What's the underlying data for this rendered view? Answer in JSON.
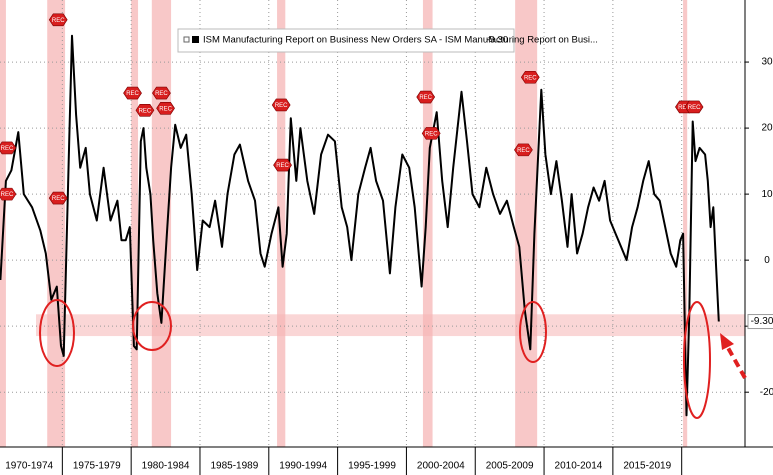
{
  "chart_data": {
    "type": "line",
    "series": [
      {
        "name": "ISM Manufacturing Report on Business New Orders SA - ISM Manufacturing Report on Busi...",
        "color": "#000000",
        "x": [
          1970.5,
          1970.9,
          1971.3,
          1971.8,
          1972.2,
          1972.8,
          1973.4,
          1973.8,
          1974.2,
          1974.6,
          1974.9,
          1975.1,
          1975.3,
          1975.5,
          1975.7,
          1976.0,
          1976.3,
          1976.7,
          1977.0,
          1977.5,
          1978.0,
          1978.5,
          1979.0,
          1979.3,
          1979.6,
          1979.9,
          1980.2,
          1980.4,
          1980.7,
          1980.9,
          1981.1,
          1981.4,
          1981.6,
          1981.9,
          1982.2,
          1982.6,
          1982.9,
          1983.2,
          1983.6,
          1984.0,
          1984.4,
          1984.8,
          1985.2,
          1985.7,
          1986.1,
          1986.6,
          1987.0,
          1987.5,
          1987.9,
          1988.5,
          1989.0,
          1989.4,
          1989.7,
          1990.2,
          1990.7,
          1991.0,
          1991.3,
          1991.6,
          1992.0,
          1992.3,
          1992.8,
          1993.3,
          1993.8,
          1994.3,
          1994.8,
          1995.3,
          1995.7,
          1996.0,
          1996.5,
          1997.0,
          1997.4,
          1997.8,
          1998.3,
          1998.8,
          1999.2,
          1999.7,
          2000.2,
          2000.6,
          2001.1,
          2001.4,
          2001.7,
          2002.2,
          2002.6,
          2003.0,
          2003.4,
          2004.0,
          2004.4,
          2004.8,
          2005.3,
          2005.8,
          2006.3,
          2006.8,
          2007.3,
          2007.8,
          2008.2,
          2008.6,
          2009.0,
          2009.3,
          2009.8,
          2010.1,
          2010.5,
          2010.9,
          2011.3,
          2011.7,
          2012.0,
          2012.4,
          2012.8,
          2013.2,
          2013.6,
          2014.0,
          2014.4,
          2014.8,
          2015.2,
          2015.6,
          2016.0,
          2016.4,
          2016.8,
          2017.2,
          2017.6,
          2018.0,
          2018.4,
          2018.8,
          2019.2,
          2019.6,
          2019.9,
          2020.1,
          2020.35,
          2020.55,
          2020.8,
          2021.0,
          2021.3,
          2021.7,
          2021.9,
          2022.1,
          2022.3,
          2022.5,
          2022.7
        ],
        "values": [
          -3,
          12,
          13.6,
          19.4,
          10,
          8,
          4.5,
          1,
          -6,
          -4,
          -13,
          -14.5,
          2,
          18,
          34,
          22,
          14,
          17,
          10,
          6,
          14,
          6,
          9,
          3,
          3,
          5,
          -13,
          -13.5,
          18,
          20,
          14,
          10,
          3,
          -5,
          -9.5,
          4,
          14,
          20.5,
          17,
          19,
          10,
          -1.5,
          6,
          5,
          9,
          2,
          10,
          16,
          17.5,
          12,
          9,
          1,
          -1,
          4,
          8,
          -1,
          4,
          21.5,
          12,
          20,
          12,
          7,
          16,
          19,
          18,
          8,
          5,
          0,
          10,
          14,
          17,
          12,
          9,
          -2,
          8,
          16,
          14,
          8,
          -4,
          5,
          17,
          22.4,
          12,
          5,
          14,
          25.5,
          18,
          10,
          8,
          14,
          10,
          7,
          9,
          5,
          2,
          -7.6,
          -13.5,
          4,
          25.8,
          16,
          10,
          15,
          9,
          2,
          10,
          1,
          4,
          8,
          11,
          9,
          12,
          6,
          4,
          2,
          0,
          5,
          8,
          12,
          15,
          10,
          9,
          5,
          1,
          -1,
          3,
          4,
          -23.5,
          -8,
          21,
          15,
          17,
          16,
          12,
          5,
          8,
          -1,
          -9.3
        ]
      }
    ],
    "last_label": "-9.30",
    "xlim": [
      1970.47,
      2024.6
    ],
    "ylim": [
      -28.3,
      39.4
    ],
    "yticks": [
      -20,
      -10,
      0,
      10,
      20,
      30
    ],
    "x_periods": [
      {
        "label": "1970-1974",
        "start": 1970,
        "end": 1975
      },
      {
        "label": "1975-1979",
        "start": 1975,
        "end": 1980
      },
      {
        "label": "1980-1984",
        "start": 1980,
        "end": 1985
      },
      {
        "label": "1985-1989",
        "start": 1985,
        "end": 1990
      },
      {
        "label": "1990-1994",
        "start": 1990,
        "end": 1995
      },
      {
        "label": "1995-1999",
        "start": 1995,
        "end": 2000
      },
      {
        "label": "2000-2004",
        "start": 2000,
        "end": 2005
      },
      {
        "label": "2005-2009",
        "start": 2005,
        "end": 2010
      },
      {
        "label": "2010-2014",
        "start": 2010,
        "end": 2015
      },
      {
        "label": "2015-2019",
        "start": 2015,
        "end": 2020
      }
    ],
    "recessions": [
      [
        1969.9,
        1970.9
      ],
      [
        1973.9,
        1975.2
      ],
      [
        1980.0,
        1980.5
      ],
      [
        1981.5,
        1982.9
      ],
      [
        1990.6,
        1991.2
      ],
      [
        2001.2,
        2001.9
      ],
      [
        2007.9,
        2009.5
      ],
      [
        2020.1,
        2020.4
      ]
    ],
    "highlight_band": [
      -11.5,
      -8.2
    ],
    "rec_markers": [
      {
        "x": 1970.7,
        "y": 17,
        "label": "REC"
      },
      {
        "x": 1970.7,
        "y": 10,
        "label": "REC"
      },
      {
        "x": 1974.7,
        "y": 36.4,
        "label": "REC"
      },
      {
        "x": 1974.7,
        "y": 9.4,
        "label": "REC"
      },
      {
        "x": 1980.1,
        "y": 25.3,
        "label": "REC"
      },
      {
        "x": 1981.0,
        "y": 22.7,
        "label": "REC"
      },
      {
        "x": 1982.2,
        "y": 25.3,
        "label": "REC"
      },
      {
        "x": 1982.5,
        "y": 23,
        "label": "REC"
      },
      {
        "x": 1990.9,
        "y": 23.5,
        "label": "REC"
      },
      {
        "x": 1991.0,
        "y": 14.4,
        "label": "REC"
      },
      {
        "x": 2001.4,
        "y": 24.7,
        "label": "REC"
      },
      {
        "x": 2001.8,
        "y": 19.2,
        "label": "REC"
      },
      {
        "x": 2009.0,
        "y": 27.7,
        "label": "REC"
      },
      {
        "x": 2008.5,
        "y": 16.7,
        "label": "REC"
      },
      {
        "x": 2020.2,
        "y": 23.2,
        "label": "REC"
      },
      {
        "x": 2020.9,
        "y": 23.2,
        "label": "REC"
      }
    ],
    "grid": true
  }
}
